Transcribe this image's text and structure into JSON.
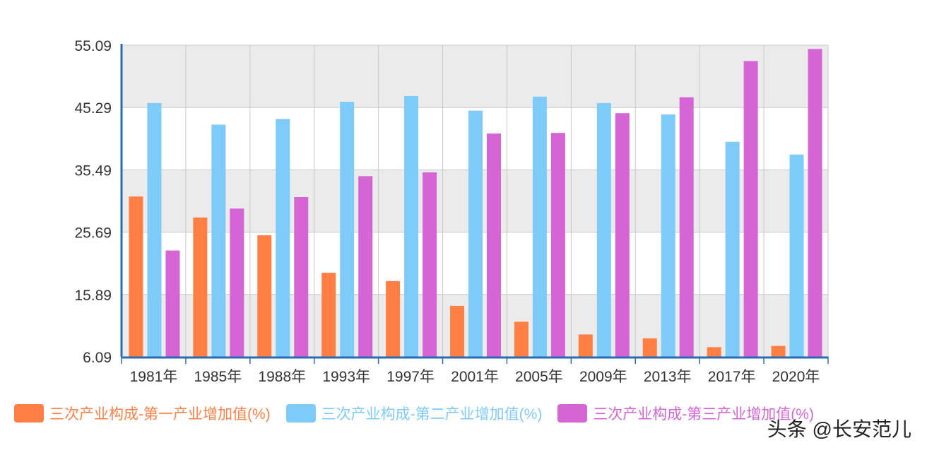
{
  "chart_data": {
    "type": "bar",
    "title": "",
    "xlabel": "",
    "ylabel": "",
    "ylim": [
      6.09,
      55.09
    ],
    "yticks": [
      "6.09",
      "15.89",
      "25.69",
      "35.49",
      "45.29",
      "55.09"
    ],
    "grid": true,
    "legend_position": "bottom",
    "categories": [
      "1981年",
      "1985年",
      "1988年",
      "1993年",
      "1997年",
      "2001年",
      "2005年",
      "2009年",
      "2013年",
      "2017年",
      "2020年"
    ],
    "series": [
      {
        "name": "三次产业构成-第一产业增加值(%)",
        "color": "#ff7f45",
        "values": [
          31.3,
          28.0,
          25.2,
          19.3,
          18.0,
          14.1,
          11.6,
          9.6,
          9.0,
          7.6,
          7.8
        ]
      },
      {
        "name": "三次产业构成-第二产业增加值(%)",
        "color": "#7ecbfa",
        "values": [
          46.0,
          42.6,
          43.5,
          46.2,
          47.1,
          44.8,
          47.0,
          46.0,
          44.2,
          39.9,
          37.9
        ]
      },
      {
        "name": "三次产业构成-第三产业增加值(%)",
        "color": "#d565d5",
        "values": [
          22.8,
          29.4,
          31.2,
          34.5,
          35.1,
          41.2,
          41.3,
          44.4,
          46.9,
          52.6,
          54.5
        ]
      }
    ]
  },
  "watermark": "头条 @长安范儿"
}
